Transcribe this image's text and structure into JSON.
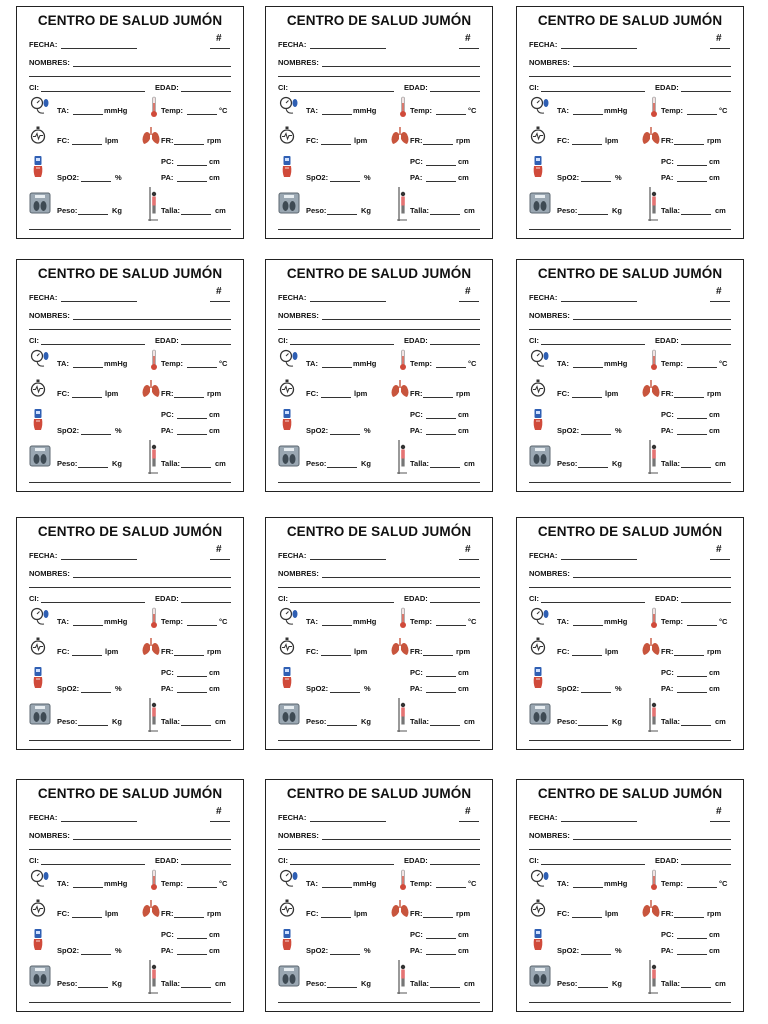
{
  "card": {
    "title": "CENTRO DE SALUD JUMÓN",
    "fecha": "FECHA:",
    "hash": "#",
    "nombres": "NOMBRES:",
    "ci": "CI:",
    "edad": "EDAD:",
    "ta": "TA:",
    "ta_unit": "mmHg",
    "temp": "Temp:",
    "temp_unit": "°C",
    "fc": "FC:",
    "fc_unit": "lpm",
    "fr": "FR:",
    "fr_unit": "rpm",
    "pc": "PC:",
    "pc_unit": "cm",
    "spo2": "SpO2:",
    "spo2_unit": "%",
    "pa": "PA:",
    "pa_unit": "cm",
    "peso": "Peso:",
    "peso_unit": "Kg",
    "talla": "Talla:",
    "talla_unit": "cm"
  },
  "icons": {
    "bp": "blood-pressure-icon",
    "thermo": "thermometer-icon",
    "heart": "heart-rate-icon",
    "lungs": "lungs-icon",
    "oximeter": "pulse-oximeter-icon",
    "scale": "weight-scale-icon",
    "height": "height-measure-icon"
  },
  "colors": {
    "border": "#222222",
    "lungs": "#c8553d",
    "thermo": "#d04a3a",
    "oximeter": "#2f5fb3",
    "scale": "#9aa7b2"
  }
}
